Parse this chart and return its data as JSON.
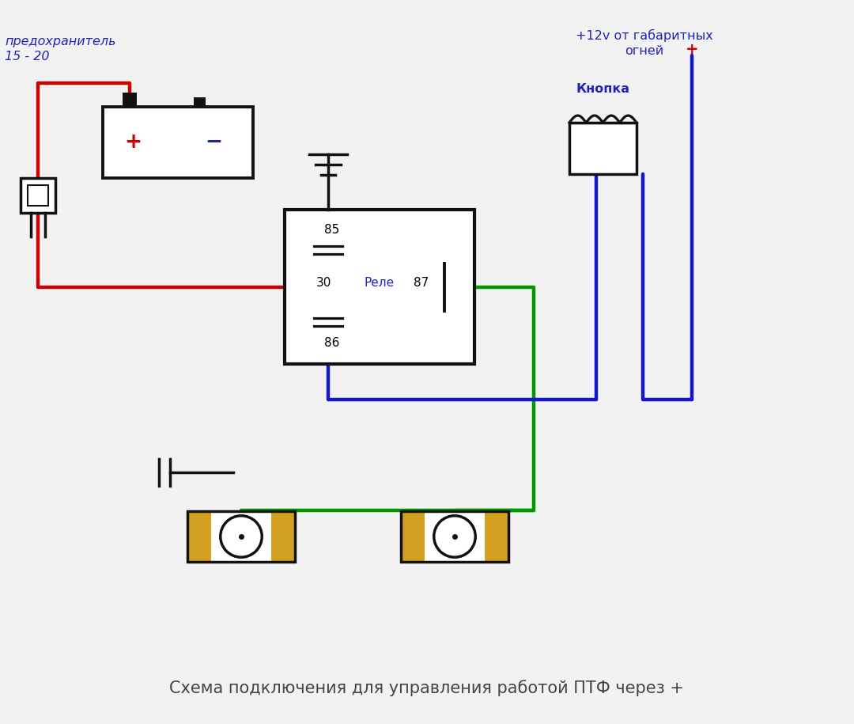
{
  "bg_color": "#f2f2f2",
  "title_text": "Схема подключения для управления работой ПТФ через +",
  "label_predohranitel": "предохранитель\n15 - 20",
  "label_12v": "+12v от габаритных\nогней",
  "label_knopka": "Кнопка",
  "label_rele": "Реле",
  "label_30": "30",
  "label_85": "85",
  "label_86": "86",
  "label_87": "87",
  "wire_red": "#cc0000",
  "wire_blue": "#1515cc",
  "wire_green": "#009900",
  "wire_black": "#111111",
  "text_blue": "#2222bb",
  "text_red": "#cc0000",
  "lamp_gold": "#d4a020",
  "lw": 3.2
}
